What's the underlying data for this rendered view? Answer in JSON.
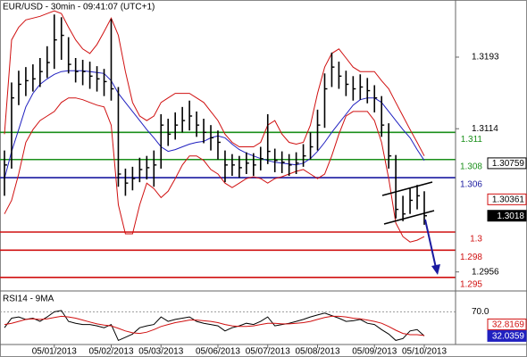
{
  "chart_data": [
    {
      "type": "ohlc",
      "title": "EUR/USD - 30min - 09:41:07 (UTC+1)",
      "categories": [
        null,
        null,
        null,
        null,
        null,
        null,
        null,
        "05/01/2013",
        null,
        null,
        null,
        null,
        null,
        null,
        null,
        "05/02/2013",
        null,
        null,
        null,
        null,
        null,
        null,
        "05/03/2013",
        null,
        null,
        null,
        null,
        null,
        null,
        null,
        "05/06/2013",
        null,
        null,
        null,
        null,
        null,
        null,
        "05/07/2013",
        null,
        null,
        null,
        null,
        null,
        null,
        "05/08/2013",
        null,
        null,
        null,
        null,
        null,
        null,
        null,
        "05/09/2013",
        null,
        null,
        null,
        null,
        null,
        null,
        "05/10/2013"
      ],
      "high": [
        1.309,
        1.3165,
        1.3178,
        1.3182,
        1.3185,
        1.3192,
        1.3205,
        1.324,
        1.3237,
        1.3215,
        1.3192,
        1.319,
        1.3188,
        1.3183,
        1.318,
        1.3235,
        1.316,
        1.307,
        1.3072,
        1.3082,
        1.3084,
        1.309,
        1.313,
        1.3125,
        1.3132,
        1.3138,
        1.3145,
        1.3133,
        1.3125,
        1.3118,
        1.3112,
        1.309,
        1.3086,
        1.3084,
        1.3088,
        1.3087,
        1.3094,
        1.313,
        1.3092,
        1.3089,
        1.3086,
        1.3088,
        1.3097,
        1.311,
        1.3135,
        1.3175,
        1.3198,
        1.3188,
        1.3178,
        1.3172,
        1.3174,
        1.317,
        1.3162,
        1.315,
        1.312,
        1.3085,
        1.304,
        1.3048,
        1.3052,
        1.3045
      ],
      "low": [
        1.304,
        1.307,
        1.314,
        1.315,
        1.3155,
        1.316,
        1.317,
        1.318,
        1.319,
        1.3175,
        1.3165,
        1.3162,
        1.3158,
        1.3155,
        1.315,
        1.3145,
        1.305,
        1.304,
        1.3046,
        1.3055,
        1.3058,
        1.305,
        1.307,
        1.3095,
        1.3102,
        1.311,
        1.3112,
        1.3105,
        1.3098,
        1.309,
        1.308,
        1.3055,
        1.3062,
        1.306,
        1.3064,
        1.3062,
        1.3068,
        1.3075,
        1.3066,
        1.3065,
        1.3062,
        1.3064,
        1.3072,
        1.308,
        1.309,
        1.3115,
        1.316,
        1.3158,
        1.315,
        1.3145,
        1.3146,
        1.3142,
        1.3132,
        1.3105,
        1.307,
        1.3015,
        1.3012,
        1.302,
        1.3025,
        1.3008
      ],
      "close": [
        1.3074,
        1.3148,
        1.3163,
        1.3167,
        1.3169,
        1.3177,
        1.3187,
        1.3212,
        1.3217,
        1.3185,
        1.3177,
        1.3177,
        1.3172,
        1.3169,
        1.3166,
        1.3158,
        1.3064,
        1.3054,
        1.3059,
        1.3069,
        1.3071,
        1.3074,
        1.3118,
        1.3108,
        1.3118,
        1.3123,
        1.3128,
        1.3118,
        1.311,
        1.3104,
        1.3099,
        1.3074,
        1.3074,
        1.3071,
        1.3076,
        1.3074,
        1.3081,
        1.3089,
        1.3079,
        1.3077,
        1.3074,
        1.3076,
        1.3084,
        1.3094,
        1.3118,
        1.3158,
        1.3182,
        1.3172,
        1.3163,
        1.3158,
        1.316,
        1.3156,
        1.3148,
        1.3118,
        1.3084,
        1.3025,
        1.302,
        1.3035,
        1.304,
        1.3018
      ],
      "color": "#000000",
      "bands": {
        "color": "#d01010",
        "upper": [
          1.3108,
          1.3212,
          1.3226,
          1.3234,
          1.3236,
          1.3238,
          1.3241,
          1.3244,
          1.3241,
          1.3226,
          1.3212,
          1.3202,
          1.3197,
          1.3207,
          1.3221,
          1.3236,
          1.3217,
          1.3177,
          1.3143,
          1.3128,
          1.3123,
          1.3128,
          1.3143,
          1.3148,
          1.3153,
          1.3153,
          1.3153,
          1.3148,
          1.3143,
          1.3133,
          1.3123,
          1.3108,
          1.3099,
          1.3094,
          1.3094,
          1.3094,
          1.3099,
          1.3118,
          1.3123,
          1.3108,
          1.3099,
          1.3097,
          1.3099,
          1.3118,
          1.3153,
          1.3182,
          1.3197,
          1.3202,
          1.3192,
          1.3182,
          1.3177,
          1.3177,
          1.3177,
          1.3167,
          1.3158,
          1.3143,
          1.3128,
          1.3113,
          1.3099,
          1.3084
        ],
        "lower": [
          1.302,
          1.3035,
          1.3064,
          1.3099,
          1.3113,
          1.3123,
          1.3128,
          1.3133,
          1.3143,
          1.3148,
          1.3148,
          1.3146,
          1.3143,
          1.314,
          1.3138,
          1.3118,
          1.303,
          1.2998,
          1.2998,
          1.303,
          1.3054,
          1.3048,
          1.3038,
          1.3045,
          1.3059,
          1.3074,
          1.3084,
          1.3084,
          1.3079,
          1.3069,
          1.3064,
          1.3054,
          1.3049,
          1.3054,
          1.3059,
          1.3061,
          1.3059,
          1.3054,
          1.3059,
          1.3061,
          1.3064,
          1.3067,
          1.3069,
          1.3064,
          1.3059,
          1.3064,
          1.3084,
          1.3108,
          1.3128,
          1.3133,
          1.3133,
          1.3133,
          1.3123,
          1.3099,
          1.3059,
          1.301,
          1.2995,
          1.2989,
          1.2991,
          1.2995
        ]
      },
      "ma": {
        "color": "#2020c0",
        "values": [
          1.3059,
          1.3089,
          1.3113,
          1.3138,
          1.3153,
          1.3163,
          1.3169,
          1.3174,
          1.3177,
          1.3178,
          1.3178,
          1.3178,
          1.3177,
          1.3176,
          1.3175,
          1.3167,
          1.3153,
          1.3143,
          1.3133,
          1.3123,
          1.3113,
          1.3104,
          1.3094,
          1.3089,
          1.3091,
          1.3094,
          1.3097,
          1.3099,
          1.31,
          1.3104,
          1.3106,
          1.3104,
          1.3097,
          1.3091,
          1.3087,
          1.3084,
          1.3081,
          1.3079,
          1.3077,
          1.3076,
          1.3075,
          1.3074,
          1.3076,
          1.3081,
          1.3089,
          1.3099,
          1.311,
          1.312,
          1.313,
          1.314,
          1.3146,
          1.3148,
          1.3148,
          1.3143,
          1.3133,
          1.3123,
          1.3113,
          1.3104,
          1.3091,
          1.3079
        ]
      },
      "levels": [
        {
          "value": 1.311,
          "color": "#1a8f1a"
        },
        {
          "value": 1.308,
          "color": "#1a8f1a"
        },
        {
          "value": 1.306,
          "color": "#1a1aa0"
        },
        {
          "value": 1.3,
          "color": "#d01010"
        },
        {
          "value": 1.298,
          "color": "#d01010"
        },
        {
          "value": 1.295,
          "color": "#d01010"
        }
      ],
      "value_boxes": [
        {
          "value": 1.30759,
          "color": "#000000",
          "fill": "#ffffff",
          "text_color": "#000000"
        },
        {
          "value": 1.30361,
          "color": "#d01010",
          "fill": "#ffffff",
          "text_color": "#000000"
        },
        {
          "value": 1.3018,
          "color": "#000000",
          "fill": "#000000",
          "text_color": "#ffffff"
        }
      ],
      "ylim": [
        1.2936,
        1.3256
      ],
      "yticks": [
        1.3193,
        1.3114,
        1.2956
      ]
    },
    {
      "type": "rsi",
      "title": "RSI14 - 9MA",
      "series": [
        {
          "color": "#000000",
          "values": [
            45,
            60,
            62,
            58,
            60,
            55,
            62,
            70,
            72,
            55,
            52,
            50,
            50,
            48,
            45,
            50,
            25,
            30,
            35,
            45,
            48,
            50,
            62,
            55,
            58,
            60,
            62,
            55,
            52,
            50,
            48,
            40,
            45,
            48,
            52,
            50,
            55,
            62,
            48,
            50,
            52,
            55,
            58,
            62,
            65,
            68,
            64,
            60,
            55,
            56,
            58,
            52,
            50,
            42,
            35,
            25,
            28,
            40,
            42,
            32.0359
          ]
        },
        {
          "color": "#d01010",
          "values": [
            50,
            52,
            55,
            58,
            59,
            58,
            59,
            61,
            63,
            62,
            60,
            57,
            54,
            51,
            49,
            48,
            44,
            40,
            37,
            36,
            38,
            42,
            47,
            50,
            53,
            55,
            57,
            57,
            56,
            55,
            53,
            50,
            48,
            47,
            47,
            48,
            50,
            52,
            52,
            51,
            51,
            52,
            53,
            55,
            58,
            61,
            63,
            63,
            62,
            60,
            59,
            57,
            55,
            52,
            47,
            41,
            36,
            34,
            34,
            32.8169
          ]
        }
      ],
      "value_boxes": [
        {
          "value": 32.8169,
          "color": "#d01010",
          "fill": "#ffffff",
          "text_color": "#d01010"
        },
        {
          "value": 32.0359,
          "color": "#2020c0",
          "fill": "#2020c0",
          "text_color": "#ffffff"
        }
      ],
      "ylim": [
        20,
        100
      ],
      "yticks": [
        {
          "value": 70,
          "label": "70.0"
        }
      ]
    }
  ]
}
